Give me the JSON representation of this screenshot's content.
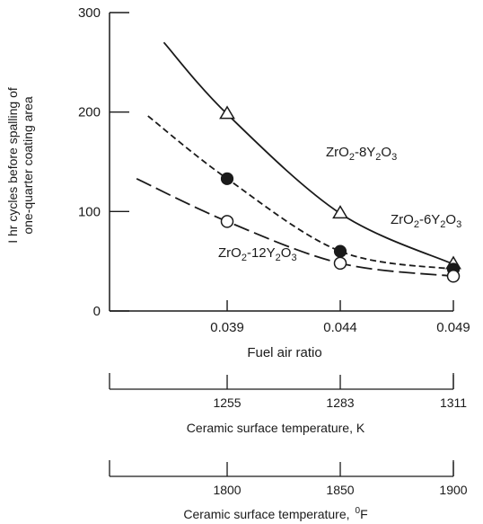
{
  "chart_data": {
    "type": "line",
    "xlabel": "Fuel air ratio",
    "ylabel_line1": "I hr cycles before spalling of",
    "ylabel_line2": "one-quarter coating area",
    "x_ticks": [
      "0.039",
      "0.044",
      "0.049"
    ],
    "x_tick_values": [
      0.039,
      0.044,
      0.049
    ],
    "y_ticks": [
      "0",
      "100",
      "200",
      "300"
    ],
    "y_tick_values": [
      0,
      100,
      200,
      300
    ],
    "xlim": [
      0.0338,
      0.049
    ],
    "ylim": [
      0,
      300
    ],
    "series": [
      {
        "name": "ZrO2-8Y2O3",
        "label_main": "ZrO",
        "label_sub1": "2",
        "label_mid": "-8Y",
        "label_sub2": "2",
        "label_end": "O",
        "label_sub3": "3",
        "marker": "open-triangle",
        "line_style": "solid",
        "points": [
          [
            0.039,
            198
          ],
          [
            0.044,
            98
          ],
          [
            0.049,
            47
          ]
        ],
        "curve": [
          [
            0.0362,
            270
          ],
          [
            0.039,
            198
          ],
          [
            0.044,
            98
          ],
          [
            0.049,
            47
          ]
        ]
      },
      {
        "name": "ZrO2-6Y2O3",
        "label_main": "ZrO",
        "label_sub1": "2",
        "label_mid": "-6Y",
        "label_sub2": "2",
        "label_end": "O",
        "label_sub3": "3",
        "marker": "filled-circle",
        "line_style": "short-dash",
        "points": [
          [
            0.039,
            133
          ],
          [
            0.044,
            60
          ],
          [
            0.049,
            42
          ]
        ],
        "curve": [
          [
            0.0355,
            196
          ],
          [
            0.039,
            133
          ],
          [
            0.044,
            60
          ],
          [
            0.049,
            42
          ]
        ]
      },
      {
        "name": "ZrO2-12Y2O3",
        "label_main": "ZrO",
        "label_sub1": "2",
        "label_mid": "-12Y",
        "label_sub2": "2",
        "label_end": "O",
        "label_sub3": "3",
        "marker": "open-circle",
        "line_style": "long-dash",
        "points": [
          [
            0.039,
            90
          ],
          [
            0.044,
            48
          ],
          [
            0.049,
            35
          ]
        ],
        "curve": [
          [
            0.035,
            133
          ],
          [
            0.039,
            90
          ],
          [
            0.044,
            48
          ],
          [
            0.049,
            35
          ]
        ]
      }
    ],
    "secondary_axis_k": {
      "label": "Ceramic surface temperature, K",
      "ticks": [
        "1255",
        "1283",
        "1311"
      ],
      "tick_positions": [
        0.039,
        0.044,
        0.049
      ]
    },
    "secondary_axis_f": {
      "label_text": "Ceramic surface temperature,",
      "label_unit_sup": "0",
      "label_unit": "F",
      "ticks": [
        "1800",
        "1850",
        "1900"
      ],
      "tick_positions": [
        0.039,
        0.044,
        0.049
      ]
    },
    "grid": false,
    "colors": {
      "ink": "#1a1a1a",
      "background": "#ffffff"
    }
  }
}
